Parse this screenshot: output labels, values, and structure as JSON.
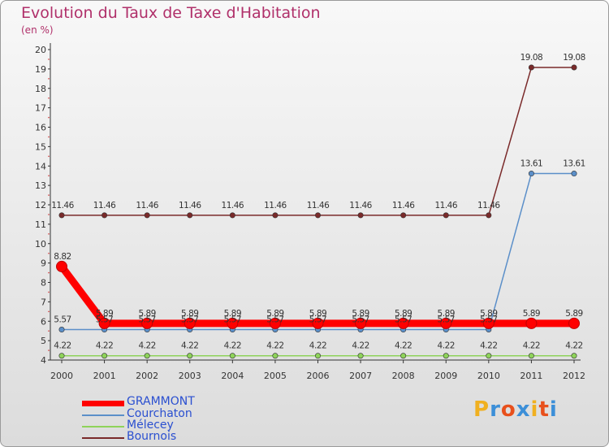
{
  "title": "Evolution du Taux de Taxe d'Habitation",
  "subtitle": "(en %)",
  "chart_data": {
    "type": "line",
    "title": "Evolution du Taux de Taxe d'Habitation",
    "ylabel": "(en %)",
    "xlabel": "",
    "x": [
      "2000",
      "2001",
      "2002",
      "2003",
      "2004",
      "2005",
      "2006",
      "2007",
      "2008",
      "2009",
      "2010",
      "2011",
      "2012"
    ],
    "ylim": [
      4,
      20
    ],
    "yticks": [
      "4",
      "5",
      "6",
      "7",
      "8",
      "9",
      "10",
      "11",
      "12",
      "13",
      "14",
      "15",
      "16",
      "17",
      "18",
      "19",
      "20"
    ],
    "grid": false,
    "legend_position": "bottom-left",
    "series": [
      {
        "name": "GRAMMONT",
        "color": "#ff0000",
        "values": [
          8.82,
          5.89,
          5.89,
          5.89,
          5.89,
          5.89,
          5.89,
          5.89,
          5.89,
          5.89,
          5.89,
          5.89,
          5.89
        ],
        "labels": [
          "8.82",
          "5.89",
          "5.89",
          "5.89",
          "5.89",
          "5.89",
          "5.89",
          "5.89",
          "5.89",
          "5.89",
          "5.89",
          "5.89",
          "5.89"
        ]
      },
      {
        "name": "Courchaton",
        "color": "#5b8fc9",
        "values": [
          5.57,
          5.57,
          5.57,
          5.57,
          5.57,
          5.57,
          5.57,
          5.57,
          5.57,
          5.57,
          5.57,
          13.61,
          13.61
        ],
        "labels": [
          "5.57",
          "5.57",
          "5.57",
          "5.57",
          "5.57",
          "5.57",
          "5.57",
          "5.57",
          "5.57",
          "5.57",
          "5.57",
          "13.61",
          "13.61"
        ]
      },
      {
        "name": "Mélecey",
        "color": "#8ed35a",
        "values": [
          4.22,
          4.22,
          4.22,
          4.22,
          4.22,
          4.22,
          4.22,
          4.22,
          4.22,
          4.22,
          4.22,
          4.22,
          4.22
        ],
        "labels": [
          "4.22",
          "4.22",
          "4.22",
          "4.22",
          "4.22",
          "4.22",
          "4.22",
          "4.22",
          "4.22",
          "4.22",
          "4.22",
          "4.22",
          "4.22"
        ]
      },
      {
        "name": "Bournois",
        "color": "#7a2a2a",
        "values": [
          11.46,
          11.46,
          11.46,
          11.46,
          11.46,
          11.46,
          11.46,
          11.46,
          11.46,
          11.46,
          11.46,
          19.08,
          19.08
        ],
        "labels": [
          "11.46",
          "11.46",
          "11.46",
          "11.46",
          "11.46",
          "11.46",
          "11.46",
          "11.46",
          "11.46",
          "11.46",
          "11.46",
          "19.08",
          "19.08"
        ]
      }
    ]
  },
  "legend": {
    "items": [
      {
        "label": "GRAMMONT",
        "color": "#ff0000"
      },
      {
        "label": "Courchaton",
        "color": "#5b8fc9"
      },
      {
        "label": "Mélecey",
        "color": "#8ed35a"
      },
      {
        "label": "Bournois",
        "color": "#7a2a2a"
      }
    ]
  },
  "logo": {
    "text": "Proxiti",
    "letters": [
      "P",
      "r",
      "o",
      "x",
      "i",
      "t",
      "i"
    ],
    "colors": [
      "#f0b020",
      "#3c8fd8",
      "#e8501c",
      "#3c8fd8",
      "#f0b020",
      "#e8501c",
      "#3c8fd8"
    ]
  }
}
